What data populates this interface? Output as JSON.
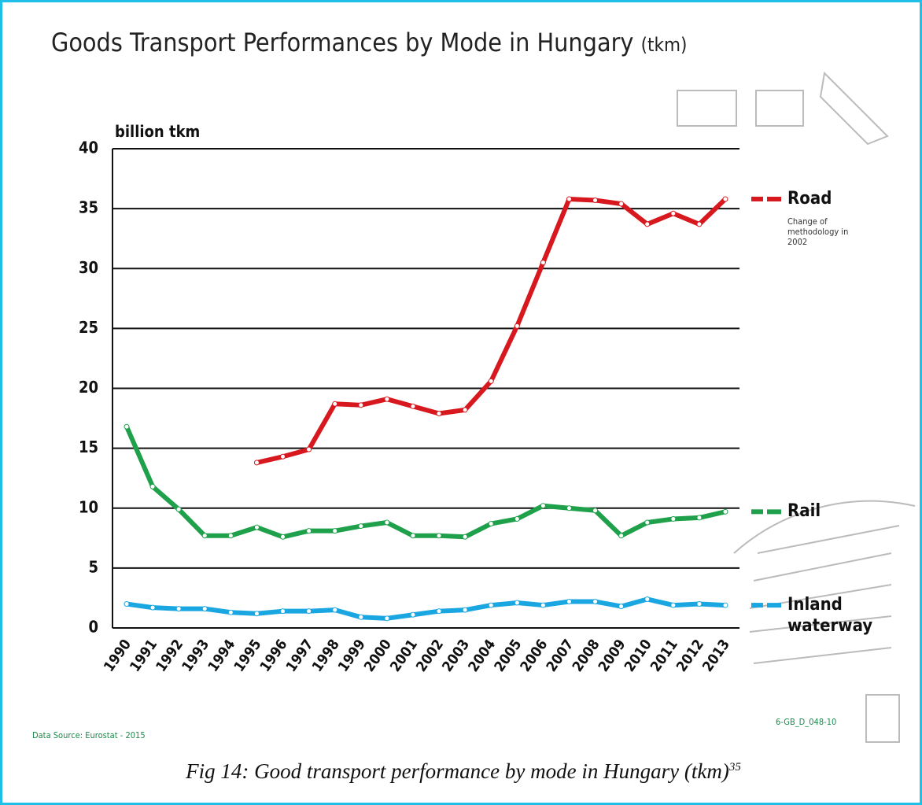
{
  "chart_data": {
    "type": "line",
    "title": "Goods Transport Performances by Mode in Hungary",
    "title_unit": "(tkm)",
    "ylabel": "billion tkm",
    "categories": [
      "1990",
      "1991",
      "1992",
      "1993",
      "1994",
      "1995",
      "1996",
      "1997",
      "1998",
      "1999",
      "2000",
      "2001",
      "2002",
      "2003",
      "2004",
      "2005",
      "2006",
      "2007",
      "2008",
      "2009",
      "2010",
      "2011",
      "2012",
      "2013"
    ],
    "series": [
      {
        "name": "Road",
        "color": "#d7191f",
        "note": "Change of methodology in 2002",
        "values": [
          null,
          null,
          null,
          null,
          null,
          13.8,
          14.3,
          14.9,
          18.7,
          18.6,
          19.1,
          18.5,
          17.9,
          18.2,
          20.6,
          25.2,
          30.5,
          35.8,
          35.7,
          35.4,
          33.7,
          34.6,
          33.7,
          35.8
        ]
      },
      {
        "name": "Rail",
        "color": "#1fa04a",
        "values": [
          16.8,
          11.8,
          9.9,
          7.7,
          7.7,
          8.4,
          7.6,
          8.1,
          8.1,
          8.5,
          8.8,
          7.7,
          7.7,
          7.6,
          8.7,
          9.1,
          10.2,
          10.0,
          9.8,
          7.7,
          8.8,
          9.1,
          9.2,
          9.7
        ]
      },
      {
        "name": "Inland waterway",
        "color": "#1aa6e0",
        "values": [
          2.0,
          1.7,
          1.6,
          1.6,
          1.3,
          1.2,
          1.4,
          1.4,
          1.5,
          0.9,
          0.8,
          1.1,
          1.4,
          1.5,
          1.9,
          2.1,
          1.9,
          2.2,
          2.2,
          1.8,
          2.4,
          1.9,
          2.0,
          1.9
        ]
      }
    ],
    "ylim": [
      0,
      40
    ],
    "yticks": [
      0,
      5,
      10,
      15,
      20,
      25,
      30,
      35,
      40
    ],
    "grid": true,
    "source": "Data Source: Eurostat - 2015",
    "code": "6-GB_D_048-10",
    "caption": "Fig 14: Good transport performance by mode in Hungary (tkm)",
    "caption_ref": "35"
  }
}
